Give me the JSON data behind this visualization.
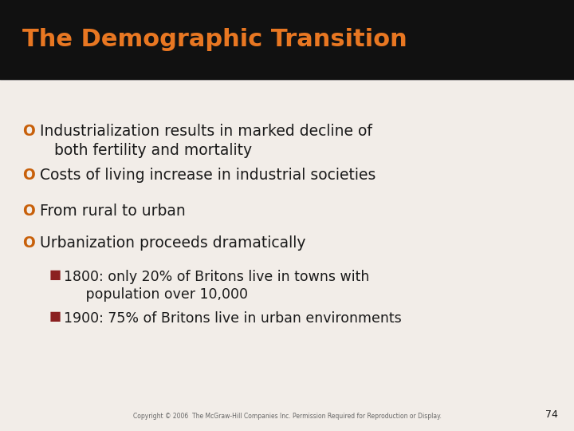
{
  "title": "The Demographic Transition",
  "title_color": "#E87722",
  "title_bg_color": "#111111",
  "slide_bg_color": "#f2ede8",
  "bullet_color": "#C8600A",
  "text_color": "#1a1a1a",
  "sub_bullet_color": "#8B2020",
  "bullet_points": [
    "Industrialization results in marked decline of\n   both fertility and mortality",
    "Costs of living increase in industrial societies",
    "From rural to urban",
    "Urbanization proceeds dramatically"
  ],
  "sub_bullets": [
    "1800: only 20% of Britons live in towns with\n     population over 10,000",
    "1900: 75% of Britons live in urban environments"
  ],
  "footer": "Copyright © 2006  The McGraw-Hill Companies Inc. Permission Required for Reproduction or Display.",
  "page_number": "74",
  "title_font_size": 22,
  "bullet_font_size": 13.5,
  "sub_bullet_font_size": 12.5
}
